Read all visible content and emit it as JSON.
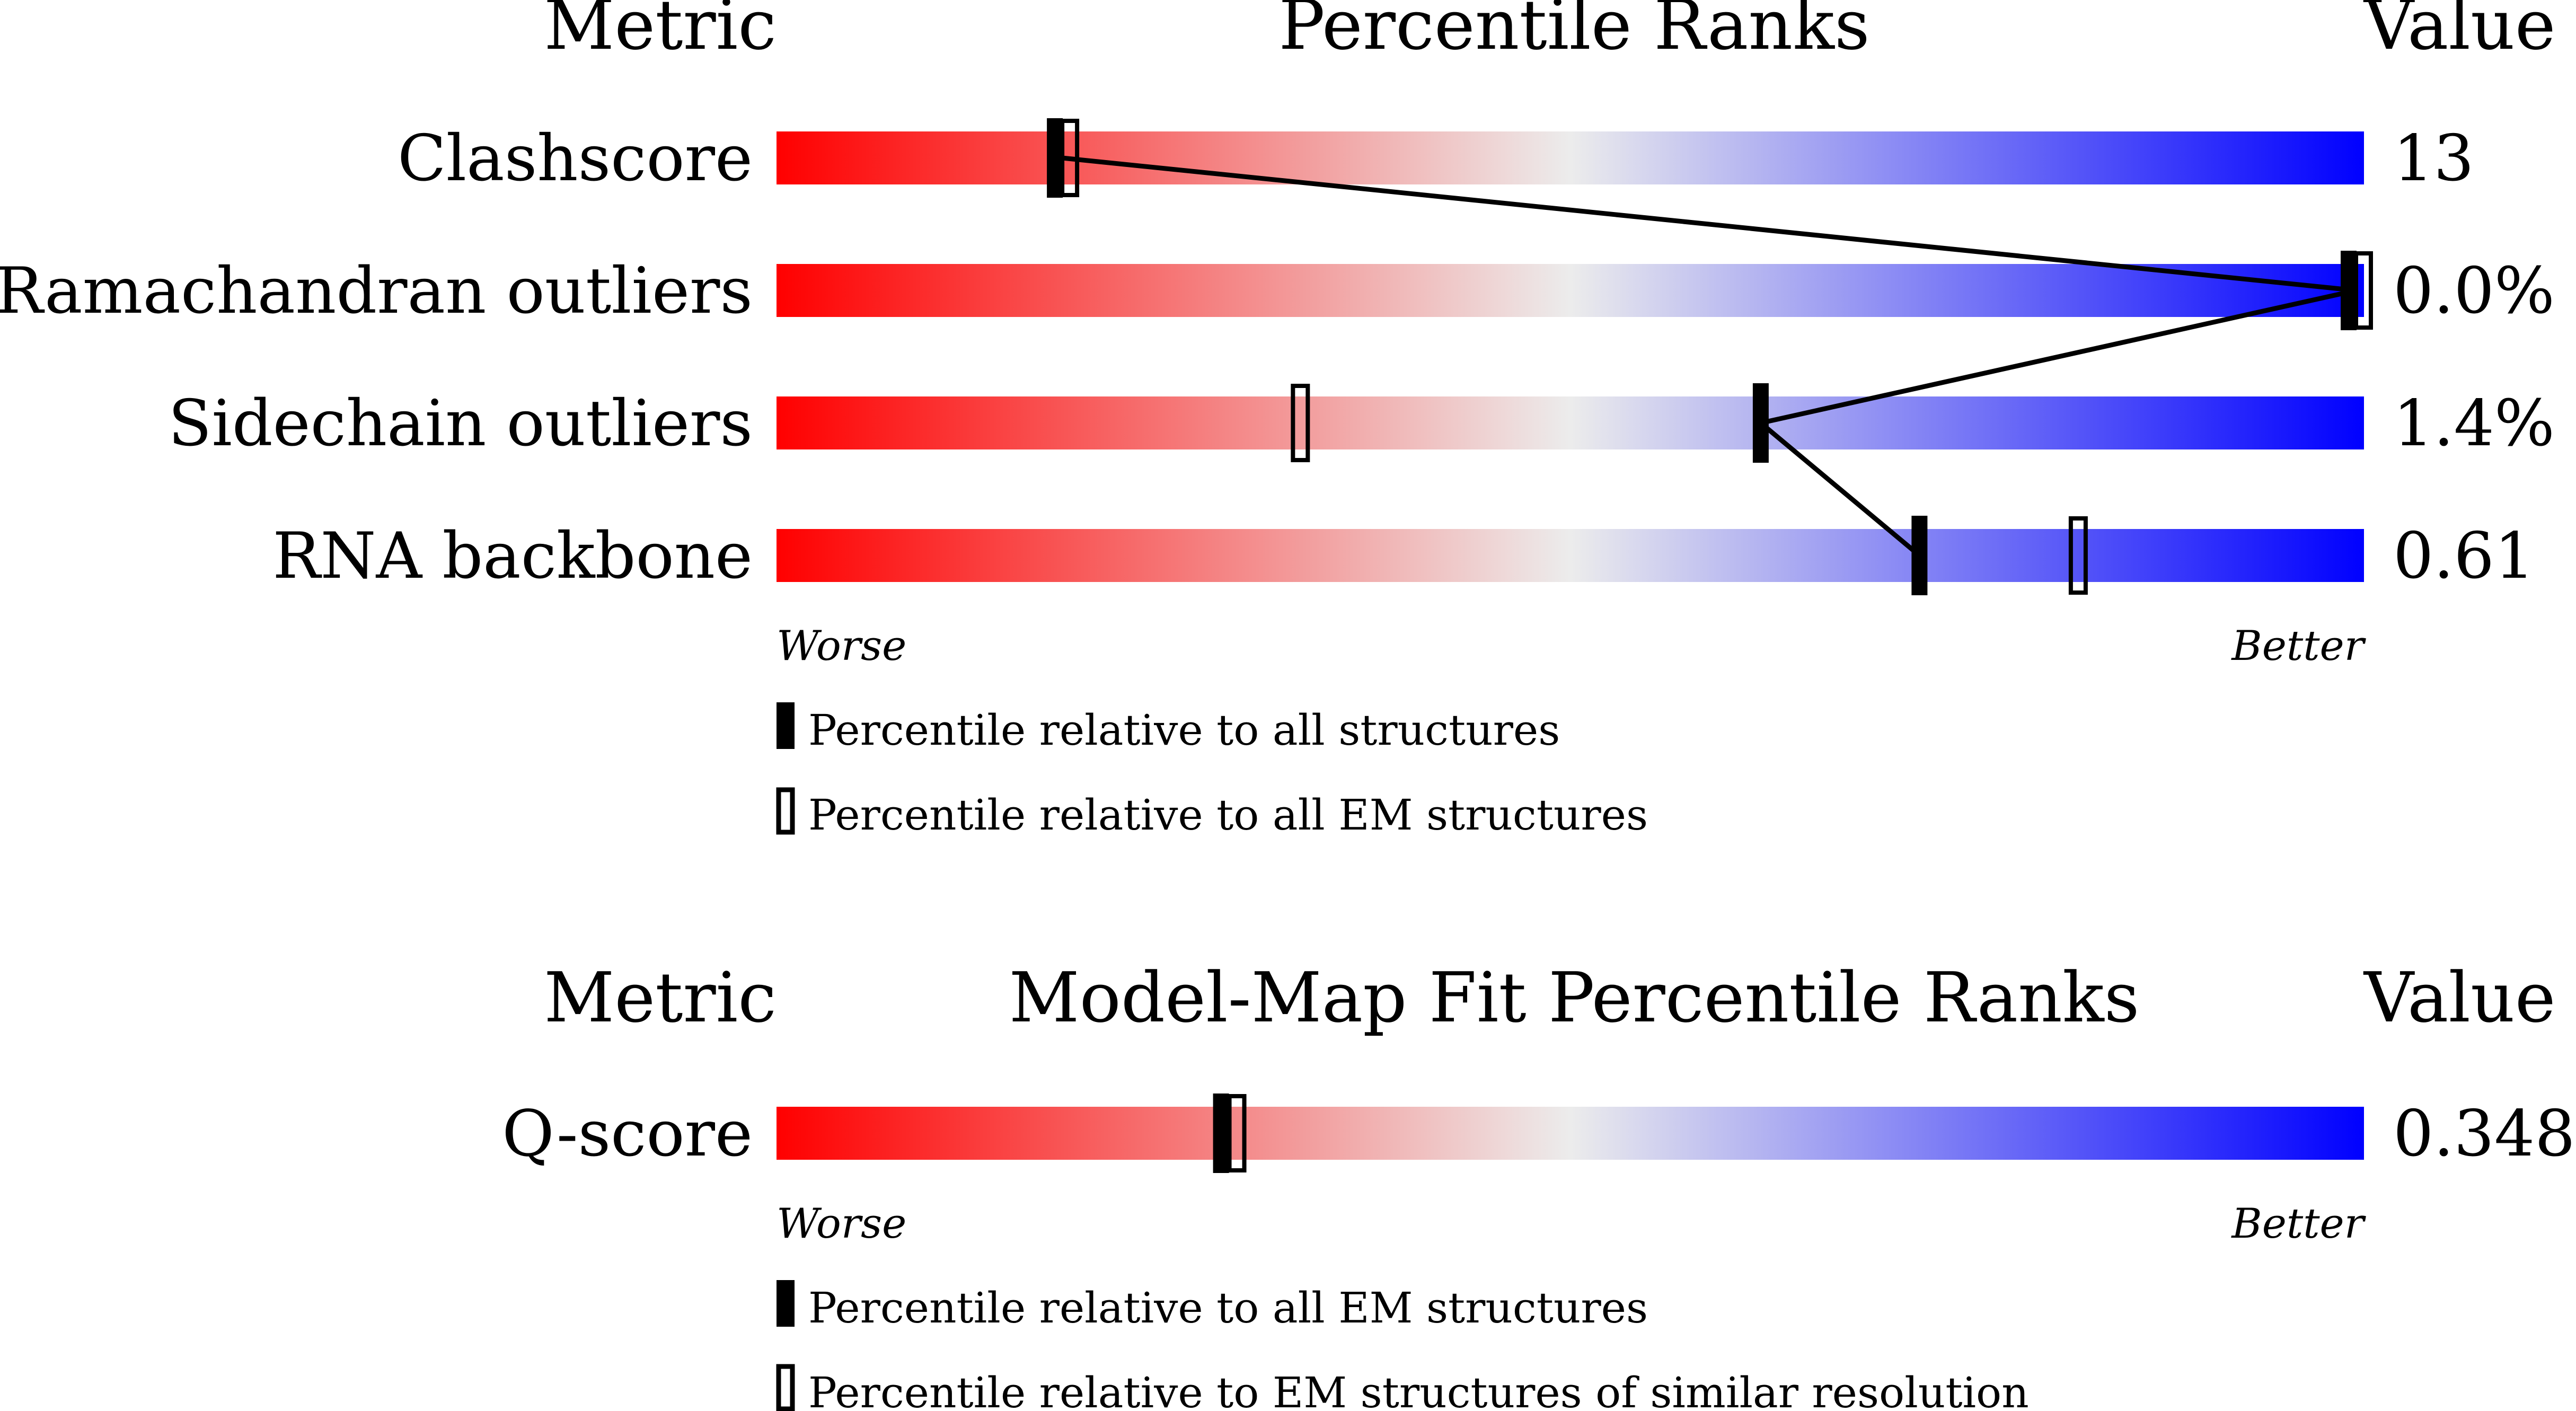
{
  "colors": {
    "worse": "#ff0000",
    "neutral": "#ececec",
    "better": "#0000ff",
    "marker": "#000000"
  },
  "chart_data": [
    {
      "type": "bar",
      "title": "Percentile Ranks",
      "metric_header": "Metric",
      "value_header": "Value",
      "axis_left_label": "Worse",
      "axis_right_label": "Better",
      "xlim": [
        0,
        100
      ],
      "legend": {
        "filled": "Percentile relative to all structures",
        "open": "Percentile relative to all EM structures"
      },
      "metrics": [
        {
          "name": "Clashscore",
          "value": "13",
          "percentile_filled": 18,
          "percentile_open": 18
        },
        {
          "name": "Ramachandran outliers",
          "value": "0.0%",
          "percentile_filled": 100,
          "percentile_open": 100
        },
        {
          "name": "Sidechain outliers",
          "value": "1.4%",
          "percentile_filled": 62,
          "percentile_open": 33
        },
        {
          "name": "RNA backbone",
          "value": "0.61",
          "percentile_filled": 72,
          "percentile_open": 82
        }
      ]
    },
    {
      "type": "bar",
      "title": "Model-Map Fit Percentile Ranks",
      "metric_header": "Metric",
      "value_header": "Value",
      "axis_left_label": "Worse",
      "axis_right_label": "Better",
      "xlim": [
        0,
        100
      ],
      "legend": {
        "filled": "Percentile relative to all EM structures",
        "open": "Percentile relative to EM structures of similar resolution"
      },
      "metrics": [
        {
          "name": "Q-score",
          "value": "0.348",
          "percentile_filled": 28,
          "percentile_open": 29
        }
      ]
    }
  ]
}
